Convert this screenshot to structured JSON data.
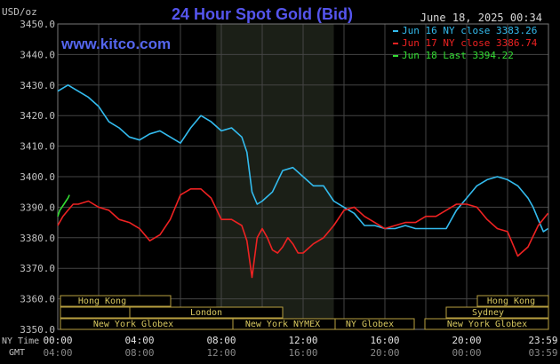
{
  "header": {
    "title": "24 Hour Spot Gold (Bid)",
    "units": "USD/oz",
    "datetime": "June 18, 2025 00:34",
    "watermark": "www.kitco.com"
  },
  "legend": [
    {
      "label": "Jun 16 NY close 3383.26",
      "color": "#33bbee"
    },
    {
      "label": "Jun 17 NY close 3386.74",
      "color": "#ee2222"
    },
    {
      "label": "Jun 18 Last 3394.22",
      "color": "#33dd33"
    }
  ],
  "axis": {
    "ny_time_label": "NY Time",
    "gmt_label": "GMT",
    "ny_ticks": [
      "00:00",
      "04:00",
      "08:00",
      "12:00",
      "16:00",
      "20:00",
      "23:59"
    ],
    "gmt_ticks": [
      "04:00",
      "08:00",
      "12:00",
      "16:00",
      "20:00",
      "00:00",
      "03:59"
    ],
    "y_ticks": [
      "3450.0",
      "3440.0",
      "3430.0",
      "3420.0",
      "3410.0",
      "3400.0",
      "3390.0",
      "3380.0",
      "3370.0",
      "3360.0",
      "3350.0"
    ]
  },
  "sessions": {
    "hong_kong_1": "Hong Kong",
    "london": "London",
    "new_york_globex_1": "New York Globex",
    "new_york_nymex": "New York NYMEX",
    "ny_globex": "NY Globex",
    "hong_kong_2": "Hong Kong",
    "sydney": "Sydney",
    "new_york_globex_2": "New York Globex"
  },
  "chart_data": {
    "type": "line",
    "title": "24 Hour Spot Gold (Bid)",
    "ylabel": "USD/oz",
    "xlabel": "NY Time",
    "ylim": [
      3350,
      3450
    ],
    "xlim_hours": [
      0,
      24
    ],
    "grid": true,
    "legend_position": "top-right",
    "highlight_band_hours": [
      7.75,
      13.5
    ],
    "series": [
      {
        "name": "Jun 16 NY close 3383.26",
        "color": "#33bbee",
        "x": [
          0,
          0.5,
          1,
          1.5,
          2,
          2.5,
          3,
          3.5,
          4,
          4.5,
          5,
          5.5,
          6,
          6.5,
          7,
          7.5,
          8,
          8.5,
          9,
          9.25,
          9.5,
          9.75,
          10,
          10.5,
          11,
          11.5,
          12,
          12.5,
          13,
          13.5,
          14,
          14.5,
          15,
          15.5,
          16,
          16.5,
          17,
          17.5,
          18,
          18.5,
          19,
          19.5,
          20,
          20.5,
          21,
          21.5,
          22,
          22.5,
          23,
          23.25,
          23.5,
          23.75,
          23.98
        ],
        "y": [
          3428,
          3430,
          3428,
          3426,
          3423,
          3418,
          3416,
          3413,
          3412,
          3414,
          3415,
          3413,
          3411,
          3416,
          3420,
          3418,
          3415,
          3416,
          3413,
          3408,
          3395,
          3391,
          3392,
          3395,
          3402,
          3403,
          3400,
          3397,
          3397,
          3392,
          3390,
          3388,
          3384,
          3384,
          3383,
          3383,
          3384,
          3383,
          3383,
          3383,
          3383,
          3389,
          3393,
          3397,
          3399,
          3400,
          3399,
          3397,
          3393,
          3390,
          3386,
          3382,
          3383
        ]
      },
      {
        "name": "Jun 17 NY close 3386.74",
        "color": "#ee2222",
        "x": [
          0,
          0.25,
          0.5,
          0.75,
          1,
          1.5,
          2,
          2.5,
          3,
          3.5,
          4,
          4.5,
          5,
          5.5,
          6,
          6.5,
          7,
          7.5,
          8,
          8.5,
          9,
          9.25,
          9.5,
          9.75,
          10,
          10.25,
          10.5,
          10.75,
          11,
          11.25,
          11.5,
          11.75,
          12,
          12.5,
          13,
          13.5,
          14,
          14.5,
          15,
          15.5,
          16,
          16.5,
          17,
          17.5,
          18,
          18.5,
          19,
          19.5,
          20,
          20.5,
          21,
          21.5,
          22,
          22.5,
          23,
          23.5,
          23.98
        ],
        "y": [
          3384,
          3387,
          3389,
          3391,
          3391,
          3392,
          3390,
          3389,
          3386,
          3385,
          3383,
          3379,
          3381,
          3386,
          3394,
          3396,
          3396,
          3393,
          3386,
          3386,
          3384,
          3379,
          3367,
          3380,
          3383,
          3380,
          3376,
          3375,
          3377,
          3380,
          3378,
          3375,
          3375,
          3378,
          3380,
          3384,
          3389,
          3390,
          3387,
          3385,
          3383,
          3384,
          3385,
          3385,
          3387,
          3387,
          3389,
          3391,
          3391,
          3390,
          3386,
          3383,
          3382,
          3374,
          3377,
          3384,
          3388
        ]
      },
      {
        "name": "Jun 18 Last 3394.22",
        "color": "#33dd33",
        "x": [
          0,
          0.1,
          0.2,
          0.3,
          0.4,
          0.5,
          0.57
        ],
        "y": [
          3387,
          3389,
          3390,
          3391,
          3392,
          3393,
          3394
        ]
      }
    ]
  }
}
